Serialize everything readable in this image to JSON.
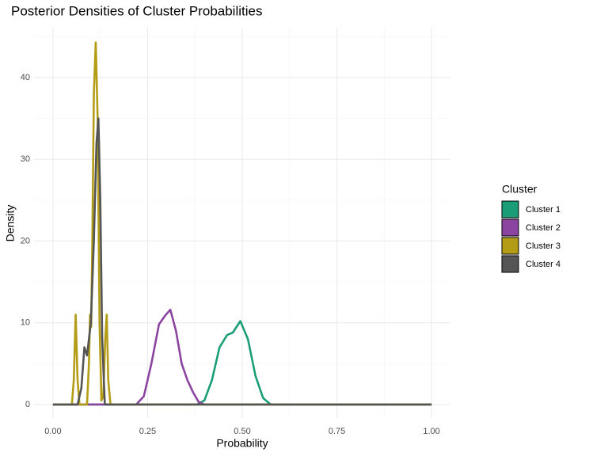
{
  "chart_data": {
    "type": "line",
    "title": "Posterior Densities of Cluster Probabilities",
    "x_label": "Probability",
    "y_label": "Density",
    "legend_title": "Cluster",
    "legend_position": "right",
    "grid": true,
    "xlim": [
      -0.05,
      1.05
    ],
    "ylim": [
      -1.65,
      46.1
    ],
    "xticks": [
      {
        "value": 0,
        "label": "0.00"
      },
      0.25,
      {
        "value": 0.5,
        "label": "0.50"
      },
      0.75,
      {
        "value": 1,
        "label": "1.00"
      }
    ],
    "yticks": [
      0,
      10,
      20,
      30,
      40
    ],
    "x_minor_grid": [
      0.125,
      0.375,
      0.625,
      0.875
    ],
    "y_minor_grid": [
      5,
      15,
      25,
      35,
      45
    ],
    "series": [
      {
        "name": "Cluster 1",
        "color": "#1b9e77",
        "x": [
          0,
          0.38,
          0.4,
          0.42,
          0.44,
          0.46,
          0.475,
          0.495,
          0.515,
          0.535,
          0.555,
          0.575,
          1.0
        ],
        "values": [
          0,
          0,
          0.5,
          3,
          7,
          8.5,
          8.8,
          10.2,
          8,
          3.5,
          0.8,
          0,
          0
        ]
      },
      {
        "name": "Cluster 2",
        "color": "#8b44a0",
        "x": [
          0,
          0.22,
          0.24,
          0.26,
          0.28,
          0.295,
          0.31,
          0.325,
          0.34,
          0.355,
          0.37,
          0.385,
          0.4,
          1.0
        ],
        "values": [
          0,
          0,
          1,
          5,
          9.8,
          10.8,
          11.6,
          9,
          5,
          3,
          1.5,
          0.3,
          0,
          0
        ]
      },
      {
        "name": "Cluster 3",
        "color": "#b39c16",
        "x": [
          0,
          0.05,
          0.055,
          0.06,
          0.065,
          0.07,
          0.09,
          0.095,
          0.098,
          0.101,
          0.104,
          0.108,
          0.113,
          0.118,
          0.123,
          0.128,
          0.133,
          0.138,
          0.142,
          0.146,
          0.152,
          1.0
        ],
        "values": [
          0,
          0,
          3,
          11,
          3,
          0,
          0,
          5,
          11,
          9.5,
          20,
          38,
          44.3,
          35,
          10,
          0.5,
          1,
          8,
          11,
          3,
          0,
          0
        ]
      },
      {
        "name": "Cluster 4",
        "color": "#555555",
        "x": [
          0,
          0.065,
          0.075,
          0.083,
          0.09,
          0.1,
          0.108,
          0.115,
          0.12,
          0.125,
          0.13,
          0.137,
          1.0
        ],
        "values": [
          0,
          0,
          2,
          7,
          6,
          10,
          20,
          32,
          35,
          25,
          8,
          0,
          0
        ]
      }
    ]
  }
}
